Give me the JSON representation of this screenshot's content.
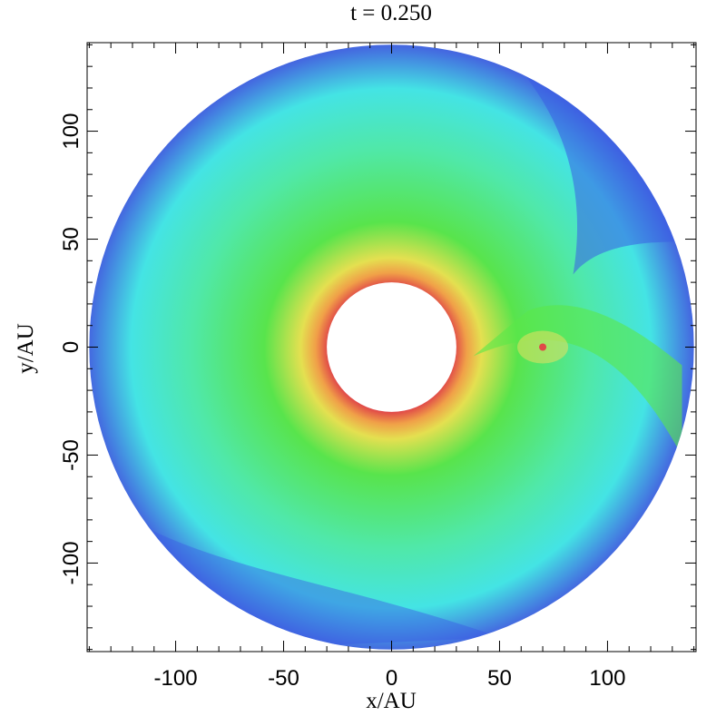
{
  "chart_data": {
    "type": "disk",
    "title": "t = 0.250",
    "x_label": "x/AU",
    "y_label": "y/AU",
    "xlim": [
      -141,
      141
    ],
    "ylim": [
      -141,
      141
    ],
    "xticks": [
      -100,
      -50,
      0,
      50,
      100
    ],
    "yticks": [
      -100,
      -50,
      0,
      50,
      100
    ],
    "xminorticks": [
      -140,
      -130,
      -120,
      -110,
      -90,
      -80,
      -70,
      -60,
      -40,
      -30,
      -20,
      -10,
      10,
      20,
      30,
      40,
      60,
      70,
      80,
      90,
      110,
      120,
      130,
      140
    ],
    "yminorticks": [
      -140,
      -130,
      -120,
      -110,
      -90,
      -80,
      -70,
      -60,
      -40,
      -30,
      -20,
      -10,
      10,
      20,
      30,
      40,
      60,
      70,
      80,
      90,
      110,
      120,
      130,
      140
    ],
    "disk": {
      "inner_radius": 30,
      "outer_radius": 140
    },
    "planet": {
      "x": 70,
      "y": 0
    }
  }
}
